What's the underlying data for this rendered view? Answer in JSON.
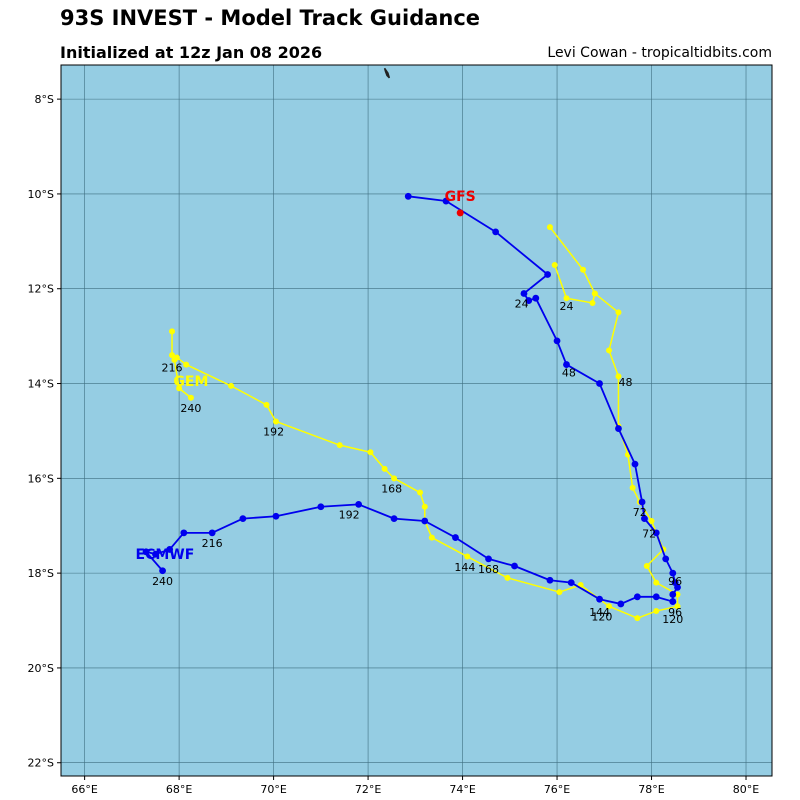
{
  "title": "93S INVEST - Model Track Guidance",
  "subtitle": "Initialized at 12z Jan 08 2026",
  "credit": "Levi Cowan - tropicaltidbits.com",
  "colors": {
    "ocean": "#95cde3",
    "grid": "#3f6e80",
    "gfs": "#0000ee",
    "gem": "#ffff00",
    "ecmwf": "#0000ee",
    "gfs_label": "#ee0000",
    "land": "#222222"
  },
  "chart_data": {
    "type": "map",
    "extent": {
      "lon": [
        65.5,
        80.55
      ],
      "lat": [
        -22.28,
        -7.28
      ]
    },
    "lon_ticks": [
      66,
      68,
      70,
      72,
      74,
      76,
      78,
      80
    ],
    "lat_ticks": [
      -8,
      -10,
      -12,
      -14,
      -16,
      -18,
      -20,
      -22
    ],
    "lon_tick_labels": [
      "66°E",
      "68°E",
      "70°E",
      "72°E",
      "74°E",
      "76°E",
      "78°E",
      "80°E"
    ],
    "lat_tick_labels": [
      "8°S",
      "10°S",
      "12°S",
      "14°S",
      "16°S",
      "18°S",
      "20°S",
      "22°S"
    ],
    "island": [
      [
        72.35,
        -7.35
      ],
      [
        72.42,
        -7.45
      ],
      [
        72.45,
        -7.55
      ],
      [
        72.4,
        -7.5
      ],
      [
        72.37,
        -7.42
      ]
    ],
    "tracks": [
      {
        "name": "GEM",
        "color_key": "gem",
        "points": [
          [
            75.85,
            -10.7
          ],
          [
            76.55,
            -11.6
          ],
          [
            76.8,
            -12.1
          ],
          [
            77.3,
            -12.5
          ],
          [
            77.1,
            -13.3
          ],
          [
            77.3,
            -13.85
          ],
          [
            77.3,
            -14.9
          ],
          [
            77.5,
            -15.5
          ],
          [
            77.6,
            -16.2
          ],
          [
            77.75,
            -16.5
          ],
          [
            78.0,
            -16.9
          ],
          [
            78.25,
            -17.5
          ],
          [
            77.9,
            -17.85
          ],
          [
            78.1,
            -18.2
          ],
          [
            78.55,
            -18.45
          ],
          [
            78.55,
            -18.7
          ],
          [
            78.1,
            -18.8
          ],
          [
            77.7,
            -18.95
          ],
          [
            77.1,
            -18.7
          ],
          [
            76.5,
            -18.25
          ],
          [
            76.05,
            -18.4
          ],
          [
            74.95,
            -18.1
          ],
          [
            74.1,
            -17.65
          ],
          [
            73.35,
            -17.25
          ],
          [
            73.2,
            -16.9
          ],
          [
            73.2,
            -16.6
          ],
          [
            73.1,
            -16.3
          ],
          [
            72.55,
            -16.0
          ],
          [
            72.35,
            -15.8
          ],
          [
            72.05,
            -15.45
          ],
          [
            71.4,
            -15.3
          ],
          [
            70.05,
            -14.8
          ],
          [
            69.85,
            -14.45
          ],
          [
            69.1,
            -14.05
          ],
          [
            68.15,
            -13.6
          ],
          [
            67.95,
            -13.45
          ],
          [
            67.85,
            -13.4
          ],
          [
            67.85,
            -12.9
          ]
        ]
      },
      {
        "name": "GEM-tail",
        "color_key": "gem",
        "points": [
          [
            67.9,
            -13.5
          ],
          [
            68.0,
            -14.1
          ],
          [
            68.25,
            -14.3
          ]
        ]
      },
      {
        "name": "GEM-hook",
        "color_key": "gem",
        "points": [
          [
            75.95,
            -11.5
          ],
          [
            76.2,
            -12.2
          ],
          [
            76.75,
            -12.3
          ],
          [
            76.8,
            -12.1
          ]
        ]
      },
      {
        "name": "GFS-ECMWF",
        "color_key": "gfs",
        "points": [
          [
            72.85,
            -10.05
          ],
          [
            73.65,
            -10.15
          ],
          [
            74.7,
            -10.8
          ],
          [
            75.8,
            -11.7
          ],
          [
            75.3,
            -12.1
          ],
          [
            75.4,
            -12.25
          ],
          [
            75.55,
            -12.2
          ],
          [
            76.0,
            -13.1
          ],
          [
            76.2,
            -13.6
          ],
          [
            76.9,
            -14.0
          ],
          [
            77.3,
            -14.95
          ],
          [
            77.65,
            -15.7
          ],
          [
            77.8,
            -16.5
          ],
          [
            77.85,
            -16.85
          ],
          [
            78.1,
            -17.15
          ],
          [
            78.3,
            -17.7
          ],
          [
            78.45,
            -18.0
          ],
          [
            78.5,
            -18.2
          ],
          [
            78.55,
            -18.3
          ],
          [
            78.45,
            -18.45
          ],
          [
            78.45,
            -18.6
          ],
          [
            78.1,
            -18.5
          ],
          [
            77.7,
            -18.5
          ],
          [
            77.35,
            -18.65
          ],
          [
            76.9,
            -18.55
          ],
          [
            76.3,
            -18.2
          ],
          [
            75.85,
            -18.15
          ],
          [
            75.1,
            -17.85
          ],
          [
            74.55,
            -17.7
          ],
          [
            73.85,
            -17.25
          ],
          [
            73.2,
            -16.9
          ],
          [
            72.55,
            -16.85
          ],
          [
            71.8,
            -16.55
          ],
          [
            71.0,
            -16.6
          ],
          [
            70.05,
            -16.8
          ],
          [
            69.35,
            -16.85
          ],
          [
            68.7,
            -17.15
          ],
          [
            68.1,
            -17.15
          ],
          [
            67.8,
            -17.5
          ],
          [
            67.5,
            -17.6
          ],
          [
            67.3,
            -17.55
          ],
          [
            67.65,
            -17.95
          ]
        ]
      }
    ],
    "hour_labels": [
      {
        "text": "24",
        "lon": 75.25,
        "lat": -12.4
      },
      {
        "text": "24",
        "lon": 76.2,
        "lat": -12.45
      },
      {
        "text": "48",
        "lon": 76.25,
        "lat": -13.85
      },
      {
        "text": "48",
        "lon": 77.45,
        "lat": -14.05
      },
      {
        "text": "72",
        "lon": 77.75,
        "lat": -16.8
      },
      {
        "text": "72",
        "lon": 77.95,
        "lat": -17.25
      },
      {
        "text": "96",
        "lon": 78.5,
        "lat": -18.25
      },
      {
        "text": "96",
        "lon": 78.5,
        "lat": -18.9
      },
      {
        "text": "120",
        "lon": 76.95,
        "lat": -19.0
      },
      {
        "text": "120",
        "lon": 78.45,
        "lat": -19.05
      },
      {
        "text": "144",
        "lon": 76.9,
        "lat": -18.9
      },
      {
        "text": "144",
        "lon": 74.05,
        "lat": -17.95
      },
      {
        "text": "168",
        "lon": 74.55,
        "lat": -18.0
      },
      {
        "text": "168",
        "lon": 72.5,
        "lat": -16.3
      },
      {
        "text": "192",
        "lon": 71.6,
        "lat": -16.85
      },
      {
        "text": "192",
        "lon": 70.0,
        "lat": -15.1
      },
      {
        "text": "216",
        "lon": 68.7,
        "lat": -17.45
      },
      {
        "text": "216",
        "lon": 67.85,
        "lat": -13.75
      },
      {
        "text": "240",
        "lon": 68.25,
        "lat": -14.6
      },
      {
        "text": "240",
        "lon": 67.65,
        "lat": -18.25
      }
    ],
    "model_labels": [
      {
        "text": "GFS",
        "lon": 73.95,
        "lat": -10.15,
        "color_key": "gfs_label"
      },
      {
        "text": "GEM",
        "lon": 68.25,
        "lat": -14.05,
        "color_key": "gem"
      },
      {
        "text": "ECMWF",
        "lon": 67.7,
        "lat": -17.7,
        "color_key": "ecmwf"
      }
    ],
    "gfs_marker": [
      73.95,
      -10.4
    ]
  }
}
